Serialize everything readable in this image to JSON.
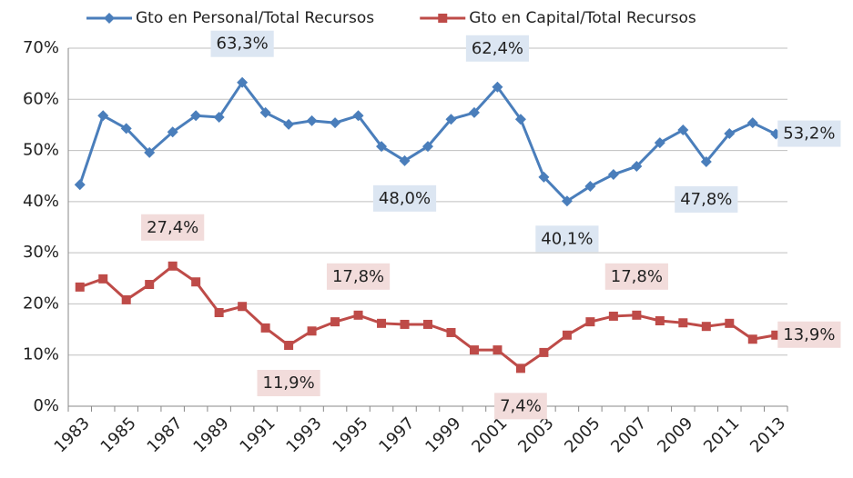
{
  "chart_data": {
    "type": "line",
    "categories": [
      "1983",
      null,
      "1985",
      null,
      "1987",
      null,
      "1989",
      null,
      "1991",
      null,
      "1993",
      null,
      "1995",
      null,
      "1997",
      null,
      "1999",
      null,
      "2001",
      null,
      "2003",
      null,
      "2005",
      null,
      "2007",
      null,
      "2009",
      null,
      "2011",
      null,
      "2013"
    ],
    "series": [
      {
        "name": "Gto en Personal/Total Recursos",
        "color": "#4a7ebb",
        "marker": "diamond",
        "label_color": "#dce6f2",
        "values": [
          43.3,
          56.8,
          54.3,
          49.6,
          53.6,
          56.8,
          56.5,
          63.3,
          57.4,
          55.1,
          55.8,
          55.4,
          56.8,
          50.8,
          48.0,
          50.8,
          56.1,
          57.4,
          62.4,
          56.1,
          44.8,
          40.1,
          43.0,
          45.3,
          46.9,
          51.5,
          54.0,
          47.8,
          53.3,
          55.4,
          53.2
        ],
        "value_labels": [
          null,
          null,
          null,
          null,
          null,
          null,
          null,
          "63,3%",
          null,
          null,
          null,
          null,
          null,
          null,
          "48,0%",
          null,
          null,
          null,
          "62,4%",
          null,
          null,
          "40,1%",
          null,
          null,
          null,
          null,
          null,
          "47,8%",
          null,
          null,
          "53,2%"
        ]
      },
      {
        "name": "Gto en Capital/Total  Recursos",
        "color": "#be4b48",
        "marker": "square",
        "label_color": "#f2dcdb",
        "values": [
          23.3,
          24.9,
          20.8,
          23.8,
          27.4,
          24.3,
          18.3,
          19.5,
          15.3,
          11.9,
          14.7,
          16.5,
          17.8,
          16.2,
          16.0,
          16.0,
          14.4,
          11.0,
          11.0,
          7.4,
          10.5,
          13.9,
          16.5,
          17.6,
          17.8,
          16.7,
          16.3,
          15.6,
          16.2,
          13.1,
          13.9
        ],
        "value_labels": [
          null,
          null,
          null,
          null,
          "27,4%",
          null,
          null,
          null,
          null,
          "11,9%",
          null,
          null,
          "17,8%",
          null,
          null,
          null,
          null,
          null,
          null,
          "7,4%",
          null,
          null,
          null,
          null,
          "17,8%",
          null,
          null,
          null,
          null,
          null,
          "13,9%"
        ]
      }
    ],
    "ylim": [
      0,
      70
    ],
    "yticks": [
      {
        "value": 0,
        "label": "0%"
      },
      {
        "value": 10,
        "label": "10%"
      },
      {
        "value": 20,
        "label": "20%"
      },
      {
        "value": 30,
        "label": "30%"
      },
      {
        "value": 40,
        "label": "40%"
      },
      {
        "value": 50,
        "label": "50%"
      },
      {
        "value": 60,
        "label": "60%"
      },
      {
        "value": 70,
        "label": "70%"
      }
    ],
    "grid": true,
    "legend": "top"
  }
}
